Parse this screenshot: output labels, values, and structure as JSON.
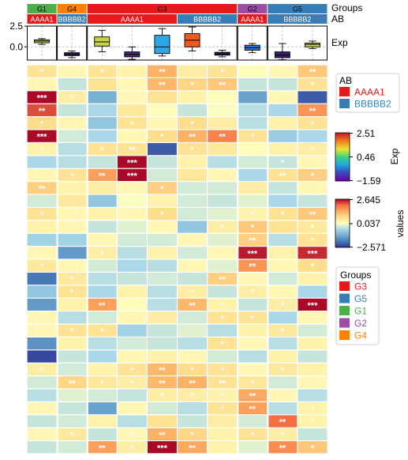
{
  "chart_data": {
    "type": "heatmap",
    "title": "",
    "columns": [
      {
        "group": "G1",
        "ab": "AAAA1"
      },
      {
        "group": "G4",
        "ab": "BBBBB2"
      },
      {
        "group": "G3",
        "ab": "AAAA1"
      },
      {
        "group": "G3",
        "ab": "AAAA1"
      },
      {
        "group": "G3",
        "ab": "AAAA1"
      },
      {
        "group": "G3",
        "ab": "BBBBB2"
      },
      {
        "group": "G3",
        "ab": "BBBBB2"
      },
      {
        "group": "G2",
        "ab": "AAAA1"
      },
      {
        "group": "G5",
        "ab": "BBBBB2"
      },
      {
        "group": "G5",
        "ab": "BBBBB2"
      }
    ],
    "group_blocks": [
      {
        "label": "G1",
        "start": 0,
        "end": 1
      },
      {
        "label": "G4",
        "start": 1,
        "end": 2
      },
      {
        "label": "G3",
        "start": 2,
        "end": 7
      },
      {
        "label": "G2",
        "start": 7,
        "end": 8
      },
      {
        "label": "G5",
        "start": 8,
        "end": 10
      }
    ],
    "ab_blocks": [
      {
        "label": "AAAA1",
        "start": 0,
        "end": 1
      },
      {
        "label": "BBBBB2",
        "start": 1,
        "end": 2
      },
      {
        "label": "AAAA1",
        "start": 2,
        "end": 5
      },
      {
        "label": "BBBBB2",
        "start": 5,
        "end": 7
      },
      {
        "label": "AAAA1",
        "start": 7,
        "end": 8
      },
      {
        "label": "BBBBB2",
        "start": 8,
        "end": 10
      }
    ],
    "annotation_labels": {
      "groups": "Groups",
      "ab": "AB",
      "exp": "Exp"
    },
    "boxplot": {
      "ylim": [
        -1.59,
        2.51
      ],
      "yticks": [
        {
          "value": 2.5,
          "label": "2.5"
        },
        {
          "value": 0,
          "label": "0.0"
        }
      ],
      "boxes": [
        {
          "col": 0,
          "whislo": 0.3,
          "q1": 0.5,
          "med": 0.7,
          "q3": 0.85,
          "whishi": 1.0,
          "color": "#d4d34a"
        },
        {
          "col": 1,
          "whislo": -1.3,
          "q1": -1.05,
          "med": -0.9,
          "q3": -0.7,
          "whishi": -0.5,
          "color": "#3a1f6e"
        },
        {
          "col": 2,
          "whislo": -0.6,
          "q1": 0.1,
          "med": 0.6,
          "q3": 1.2,
          "whishi": 2.0,
          "color": "#c9d34a"
        },
        {
          "col": 3,
          "whislo": -1.5,
          "q1": -1.2,
          "med": -0.9,
          "q3": -0.6,
          "whishi": 0.0,
          "color": "#4a2a7a"
        },
        {
          "col": 4,
          "whislo": -1.1,
          "q1": -0.8,
          "med": 0.0,
          "q3": 1.4,
          "whishi": 2.2,
          "color": "#2fa7e6"
        },
        {
          "col": 5,
          "whislo": -0.5,
          "q1": 0.0,
          "med": 0.8,
          "q3": 1.6,
          "whishi": 2.4,
          "color": "#f05a1e"
        },
        {
          "col": 6,
          "whislo": -1.2,
          "q1": -1.0,
          "med": -0.85,
          "q3": -0.65,
          "whishi": -0.4,
          "color": "#3a1f6e"
        },
        {
          "col": 7,
          "whislo": -0.7,
          "q1": -0.4,
          "med": -0.1,
          "q3": 0.2,
          "whishi": 0.4,
          "color": "#2a76d4"
        },
        {
          "col": 8,
          "whislo": -1.55,
          "q1": -1.3,
          "med": -1.0,
          "q3": -0.6,
          "whishi": 0.4,
          "color": "#3a1f6e"
        },
        {
          "col": 9,
          "whislo": -0.2,
          "q1": 0.0,
          "med": 0.3,
          "q3": 0.45,
          "whishi": 0.7,
          "color": "#c9d34a"
        }
      ]
    },
    "colorbars": [
      {
        "name": "Exp",
        "max": "2.51",
        "mid": "0.46",
        "min": "−1.59"
      },
      {
        "name": "values",
        "max": "2.645",
        "mid": "0.037",
        "min": "−2.571"
      }
    ],
    "legends": [
      {
        "title": "AB",
        "items": [
          {
            "label": "AAAA1",
            "color": "#e41a1c"
          },
          {
            "label": "BBBBB2",
            "color": "#377eb8"
          }
        ]
      },
      {
        "title": "Groups",
        "items": [
          {
            "label": "G3",
            "color": "#e41a1c"
          },
          {
            "label": "G5",
            "color": "#377eb8"
          },
          {
            "label": "G1",
            "color": "#4daf4a"
          },
          {
            "label": "G2",
            "color": "#984ea3"
          },
          {
            "label": "G4",
            "color": "#ff7f00"
          }
        ]
      }
    ],
    "value_range": [
      -2.571,
      2.645
    ],
    "matrix": [
      [
        0.6,
        0.2,
        0.6,
        0.3,
        1.3,
        0.4,
        0.6,
        0.1,
        0.2,
        1.0
      ],
      [
        0.2,
        -0.4,
        0.6,
        0.2,
        1.2,
        0.8,
        1.0,
        -0.4,
        -0.4,
        0.6
      ],
      [
        2.6,
        0.4,
        -1.2,
        0.2,
        0.6,
        0.3,
        0.1,
        -1.4,
        0.2,
        -2.2
      ],
      [
        2.2,
        -0.4,
        -0.6,
        0.5,
        0.1,
        -0.4,
        0.0,
        -0.5,
        -0.6,
        1.6
      ],
      [
        0.7,
        0.2,
        -0.9,
        0.6,
        0.2,
        0.7,
        0.4,
        -0.5,
        0.3,
        0.6
      ],
      [
        2.6,
        -0.3,
        -0.6,
        0.2,
        0.7,
        1.3,
        1.8,
        0.6,
        -0.8,
        -0.6
      ],
      [
        0.3,
        -0.5,
        0.6,
        0.6,
        -2.2,
        0.6,
        0.5,
        0.1,
        0.3,
        0.4
      ],
      [
        -0.6,
        -0.5,
        -0.4,
        2.6,
        -0.4,
        0.3,
        -0.5,
        -0.3,
        -0.4,
        0.2
      ],
      [
        0.2,
        0.6,
        1.5,
        2.6,
        -0.3,
        0.5,
        0.2,
        -0.6,
        0.6,
        0.9
      ],
      [
        0.9,
        0.3,
        0.4,
        0.2,
        0.9,
        -0.3,
        -0.3,
        0.4,
        -0.4,
        0.2
      ],
      [
        -0.3,
        0.5,
        -0.9,
        0.0,
        0.3,
        -0.3,
        -0.4,
        -0.2,
        -0.6,
        -0.4
      ],
      [
        0.6,
        0.2,
        0.3,
        0.2,
        0.7,
        -0.3,
        -0.2,
        0.3,
        0.6,
        1.0
      ],
      [
        0.3,
        0.2,
        -0.4,
        -0.2,
        0.2,
        -0.9,
        0.4,
        1.0,
        0.6,
        0.5
      ],
      [
        -0.7,
        -0.7,
        0.2,
        -0.3,
        -0.3,
        0.2,
        -0.2,
        0.9,
        -0.5,
        0.6
      ],
      [
        0.2,
        -1.5,
        0.4,
        -0.5,
        0.3,
        -0.3,
        0.2,
        2.5,
        0.3,
        2.4
      ],
      [
        0.5,
        0.2,
        -0.3,
        -0.6,
        -0.5,
        0.2,
        -0.2,
        1.6,
        0.2,
        0.7
      ],
      [
        -1.9,
        0.5,
        -0.5,
        -0.4,
        -0.3,
        -0.4,
        0.9,
        0.2,
        -0.3,
        0.3
      ],
      [
        -0.9,
        0.6,
        -0.6,
        0.3,
        -0.5,
        0.4,
        -0.4,
        0.4,
        0.2,
        -0.6
      ],
      [
        -1.5,
        0.3,
        1.5,
        0.1,
        -0.5,
        1.2,
        0.3,
        -0.4,
        0.4,
        2.6
      ],
      [
        0.2,
        -0.5,
        -0.3,
        0.2,
        0.4,
        -0.3,
        0.6,
        0.6,
        -0.6,
        0.2
      ],
      [
        0.2,
        0.6,
        0.6,
        -0.7,
        -0.4,
        -0.2,
        -0.5,
        0.3,
        0.5,
        -0.3
      ],
      [
        -1.6,
        0.3,
        -0.5,
        -0.3,
        -0.4,
        -0.5,
        0.6,
        0.2,
        -0.5,
        0.3
      ],
      [
        -2.4,
        -0.4,
        -0.6,
        0.2,
        0.3,
        0.2,
        -0.3,
        -0.5,
        0.3,
        -0.4
      ],
      [
        0.4,
        -0.3,
        0.3,
        0.6,
        1.2,
        0.7,
        0.6,
        0.2,
        0.5,
        0.3
      ],
      [
        -0.3,
        0.8,
        0.5,
        0.4,
        1.2,
        1.3,
        0.6,
        0.5,
        -0.3,
        0.2
      ],
      [
        -0.5,
        -0.2,
        -0.3,
        -0.4,
        0.4,
        0.4,
        0.3,
        1.4,
        0.2,
        -0.5
      ],
      [
        0.2,
        -0.4,
        -1.4,
        0.2,
        -0.3,
        -0.5,
        0.6,
        1.5,
        -0.5,
        0.3
      ],
      [
        -0.4,
        -0.3,
        0.3,
        -0.5,
        0.6,
        -0.4,
        0.4,
        -0.3,
        2.0,
        0.3
      ],
      [
        0.2,
        0.5,
        -0.4,
        0.2,
        1.3,
        0.8,
        0.3,
        0.6,
        0.4,
        -0.4
      ],
      [
        -0.4,
        -0.3,
        1.5,
        0.4,
        2.6,
        1.4,
        0.3,
        -0.2,
        1.7,
        1.0
      ]
    ],
    "stars": [
      [
        "*",
        "",
        "*",
        "",
        "**",
        "",
        "*",
        "",
        "",
        "**"
      ],
      [
        "",
        "",
        "",
        "",
        "**",
        "*",
        "**",
        "",
        "",
        "*"
      ],
      [
        "***",
        "*",
        "",
        "",
        "",
        "",
        "",
        "",
        "",
        ""
      ],
      [
        "**",
        "",
        "",
        "",
        "",
        "",
        "",
        "",
        "",
        "**"
      ],
      [
        "*",
        "",
        "",
        "*",
        "",
        "*",
        "",
        "",
        "",
        "*"
      ],
      [
        "***",
        "",
        "",
        "",
        "*",
        "**",
        "**",
        "*",
        "",
        ""
      ],
      [
        "*",
        "",
        "*",
        "**",
        "",
        "*",
        "",
        "",
        "",
        "*"
      ],
      [
        "",
        "",
        "",
        "***",
        "",
        "",
        "",
        "",
        "*",
        ""
      ],
      [
        "",
        "*",
        "**",
        "***",
        "",
        "",
        "",
        "",
        "**",
        "*"
      ],
      [
        "**",
        "",
        "",
        "",
        "*",
        "",
        "",
        "",
        "",
        ""
      ],
      [
        "",
        "",
        "",
        "",
        "",
        "",
        "",
        "",
        "",
        ""
      ],
      [
        "*",
        "",
        "",
        "",
        "*",
        "",
        "",
        "*",
        "*",
        "**"
      ],
      [
        "",
        "",
        "",
        "",
        "",
        "",
        "*",
        "*",
        "",
        "*"
      ],
      [
        "",
        "",
        "",
        "",
        "",
        "",
        "",
        "**",
        "",
        "*"
      ],
      [
        "",
        "",
        "*",
        "",
        "",
        "",
        "",
        "***",
        "",
        "***"
      ],
      [
        "*",
        "",
        "",
        "",
        "",
        "",
        "",
        "**",
        "",
        "*"
      ],
      [
        "",
        "*",
        "",
        "",
        "",
        "",
        "**",
        "",
        "",
        ""
      ],
      [
        "",
        "*",
        "",
        "",
        "",
        "*",
        "",
        "*",
        "",
        ""
      ],
      [
        "",
        "",
        "**",
        "",
        "",
        "**",
        "*",
        "",
        "*",
        "***"
      ],
      [
        "",
        "",
        "",
        "",
        "",
        "",
        "*",
        "*",
        "",
        ""
      ],
      [
        "",
        "*",
        "*",
        "",
        "",
        "",
        "",
        "",
        "*",
        ""
      ],
      [
        "",
        "",
        "",
        "",
        "",
        "",
        "*",
        "",
        "",
        ""
      ],
      [
        "",
        "",
        "",
        "",
        "",
        "",
        "",
        "",
        "",
        ""
      ],
      [
        "*",
        "",
        "",
        "*",
        "**",
        "*",
        "*",
        "",
        "*",
        ""
      ],
      [
        "",
        "**",
        "*",
        "*",
        "**",
        "**",
        "**",
        "*",
        "",
        ""
      ],
      [
        "",
        "",
        "",
        "",
        "*",
        "*",
        "*",
        "**",
        "",
        ""
      ],
      [
        "",
        "",
        "",
        "",
        "",
        "",
        "*",
        "**",
        "",
        "*"
      ],
      [
        "",
        "",
        "",
        "",
        "",
        "",
        "",
        "",
        "**",
        "*"
      ],
      [
        "",
        "*",
        "",
        "*",
        "**",
        "*",
        "",
        "*",
        "*",
        ""
      ],
      [
        "",
        "",
        "**",
        "*",
        "***",
        "**",
        "",
        "",
        "**",
        "*"
      ]
    ]
  }
}
